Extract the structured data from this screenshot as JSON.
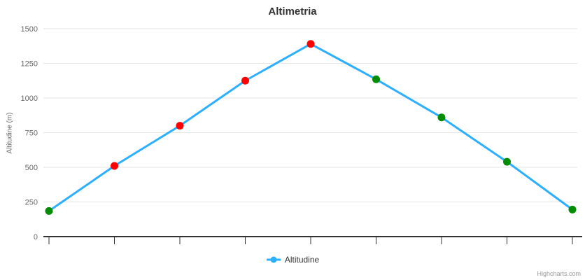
{
  "chart_data": {
    "type": "line",
    "title": "Altimetria",
    "xlabel": "",
    "ylabel": "Altitudine (m)",
    "ylim": [
      0,
      1500
    ],
    "yticks": [
      0,
      250,
      500,
      750,
      1000,
      1250,
      1500
    ],
    "grid": true,
    "legend_position": "bottom-center",
    "x": [
      0,
      1,
      2,
      3,
      4,
      5,
      6,
      7,
      8
    ],
    "series": [
      {
        "name": "Altitudine",
        "line_color": "#2caffe",
        "values": [
          185,
          510,
          800,
          1125,
          1390,
          1135,
          860,
          540,
          195
        ],
        "marker_colors": [
          "#058c05",
          "#ff0000",
          "#ff0000",
          "#ff0000",
          "#ff0000",
          "#058c05",
          "#058c05",
          "#058c05",
          "#058c05"
        ]
      }
    ],
    "colors": {
      "ascent_marker": "#ff0000",
      "descent_marker": "#058c05",
      "gridline": "#e6e6e6",
      "axis_line": "#333333",
      "tick_label": "#666666"
    },
    "credits": "Highcharts.com"
  }
}
